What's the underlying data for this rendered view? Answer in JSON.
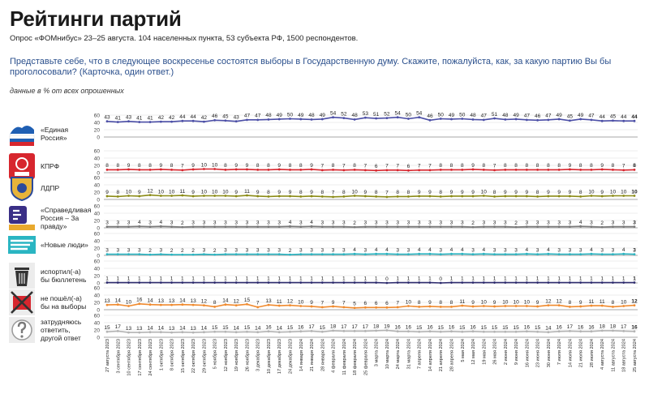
{
  "page": {
    "title": "Рейтинги партий",
    "subtitle": "Опрос «ФОМнибус» 23–25 августа. 104 населенных пункта, 53 субъекта РФ, 1500 респондентов.",
    "question": "Представьте себе, что в следующее воскресенье состоятся выборы в Государственную думу. Скажите, пожалуйста, как, за какую партию Вы бы проголосовали? (Карточка, один ответ.)",
    "note": "данные в % от всех опрошенных"
  },
  "chart_data": {
    "type": "line",
    "x": [
      "27 августа 2023",
      "3 сентября 2023",
      "10 сентября 2023",
      "17 сентября 2023",
      "24 сентября 2023",
      "1 октября 2023",
      "8 октября 2023",
      "15 октября 2023",
      "22 октября 2023",
      "29 октября 2023",
      "5 ноября 2023",
      "12 ноября 2023",
      "19 ноября 2023",
      "26 ноября 2023",
      "3 декабря 2023",
      "10 декабря 2023",
      "17 декабря 2023",
      "24 декабря 2023",
      "14 января 2024",
      "21 января 2024",
      "28 января 2024",
      "4 февраля 2024",
      "11 февраля 2024",
      "18 февраля 2024",
      "25 февраля 2024",
      "3 марта 2024",
      "10 марта 2024",
      "24 марта 2024",
      "31 марта 2024",
      "7 апреля 2024",
      "14 апреля 2024",
      "21 апреля 2024",
      "28 апреля 2024",
      "5 мая 2024",
      "12 мая 2024",
      "19 мая 2024",
      "26 мая 2024",
      "2 июня 2024",
      "9 июня 2024",
      "16 июня 2024",
      "23 июня 2024",
      "30 июня 2024",
      "7 июля 2024",
      "14 июля 2024",
      "21 июля 2024",
      "28 июля 2024",
      "4 августа 2024",
      "11 августа 2024",
      "18 августа 2024",
      "25 августа 2024"
    ],
    "ylim": [
      0,
      60
    ],
    "yticks": [
      "0",
      "20",
      "40",
      "60"
    ],
    "series": [
      {
        "name": "«Единая Россия»",
        "color": "#4b4ea6",
        "logo": "united-russia-logo",
        "values": [
          43,
          41,
          43,
          41,
          41,
          42,
          42,
          44,
          44,
          42,
          46,
          45,
          43,
          47,
          47,
          48,
          49,
          50,
          49,
          48,
          49,
          54,
          52,
          48,
          53,
          51,
          52,
          54,
          50,
          54,
          46,
          50,
          49,
          50,
          48,
          47,
          51,
          48,
          49,
          47,
          46,
          47,
          49,
          45,
          49,
          47,
          44,
          45,
          44,
          44
        ]
      },
      {
        "name": "КПРФ",
        "color": "#d7262e",
        "logo": "kprf-logo",
        "values": [
          8,
          8,
          9,
          8,
          8,
          9,
          8,
          7,
          9,
          10,
          10,
          8,
          9,
          9,
          8,
          8,
          9,
          8,
          8,
          9,
          7,
          8,
          7,
          8,
          7,
          6,
          7,
          7,
          6,
          7,
          7,
          8,
          8,
          8,
          9,
          8,
          7,
          8,
          8,
          8,
          8,
          8,
          8,
          9,
          8,
          8,
          9,
          8,
          7,
          8
        ]
      },
      {
        "name": "ЛДПР",
        "color": "#8b8b16",
        "logo": "ldpr-logo",
        "values": [
          9,
          8,
          10,
          9,
          12,
          10,
          10,
          11,
          9,
          10,
          10,
          10,
          9,
          11,
          9,
          8,
          9,
          9,
          8,
          9,
          8,
          7,
          8,
          10,
          9,
          8,
          7,
          8,
          8,
          9,
          9,
          8,
          9,
          9,
          9,
          10,
          8,
          9,
          9,
          9,
          8,
          9,
          9,
          9,
          8,
          10,
          9,
          10,
          10,
          10
        ]
      },
      {
        "name": "«Справедливая Россия – За правду»",
        "color": "#7a7a7a",
        "logo": "sr-logo",
        "values": [
          3,
          3,
          3,
          4,
          3,
          4,
          3,
          2,
          3,
          3,
          3,
          3,
          3,
          3,
          3,
          3,
          3,
          4,
          3,
          4,
          3,
          3,
          3,
          2,
          3,
          3,
          3,
          3,
          3,
          3,
          3,
          3,
          3,
          3,
          2,
          3,
          3,
          3,
          2,
          3,
          3,
          3,
          3,
          3,
          4,
          3,
          2,
          3,
          3,
          3
        ]
      },
      {
        "name": "«Новые люди»",
        "color": "#2ab5c2",
        "logo": "new-people-logo",
        "values": [
          3,
          3,
          3,
          3,
          2,
          3,
          2,
          2,
          2,
          3,
          2,
          3,
          3,
          3,
          3,
          3,
          3,
          2,
          3,
          3,
          3,
          3,
          3,
          4,
          3,
          4,
          4,
          3,
          3,
          4,
          4,
          3,
          4,
          4,
          3,
          4,
          3,
          3,
          3,
          4,
          3,
          4,
          3,
          3,
          3,
          4,
          3,
          3,
          4,
          3
        ]
      },
      {
        "name": "испортил(-а) бы бюллетень",
        "color": "#2e2c6e",
        "logo": "spoiled-ballot-icon",
        "values": [
          1,
          1,
          1,
          1,
          1,
          1,
          1,
          1,
          1,
          1,
          1,
          1,
          1,
          1,
          1,
          1,
          1,
          1,
          1,
          1,
          1,
          1,
          1,
          1,
          1,
          1,
          0,
          1,
          1,
          1,
          1,
          0,
          1,
          1,
          1,
          1,
          1,
          1,
          1,
          1,
          1,
          1,
          1,
          1,
          1,
          1,
          1,
          1,
          1,
          1
        ]
      },
      {
        "name": "не пошёл(-а) бы на выборы",
        "color": "#f08a2e",
        "logo": "not-voting-icon",
        "values": [
          13,
          14,
          10,
          16,
          14,
          13,
          13,
          14,
          13,
          12,
          8,
          14,
          12,
          15,
          7,
          13,
          11,
          12,
          10,
          9,
          7,
          9,
          7,
          5,
          6,
          6,
          6,
          7,
          10,
          8,
          9,
          8,
          8,
          11,
          9,
          10,
          9,
          10,
          10,
          10,
          9,
          12,
          12,
          8,
          9,
          11,
          11,
          8,
          10,
          12
        ]
      },
      {
        "name": "затрудняюсь ответить, другой ответ",
        "color": "#b3b3b3",
        "logo": "question-icon",
        "values": [
          15,
          17,
          13,
          13,
          14,
          14,
          13,
          14,
          13,
          14,
          15,
          15,
          14,
          15,
          14,
          16,
          14,
          15,
          16,
          17,
          15,
          18,
          17,
          17,
          17,
          18,
          19,
          16,
          16,
          15,
          16,
          15,
          16,
          15,
          16,
          15,
          15,
          15,
          15,
          16,
          15,
          14,
          16,
          17,
          16,
          16,
          18,
          18,
          17,
          16
        ]
      }
    ]
  }
}
